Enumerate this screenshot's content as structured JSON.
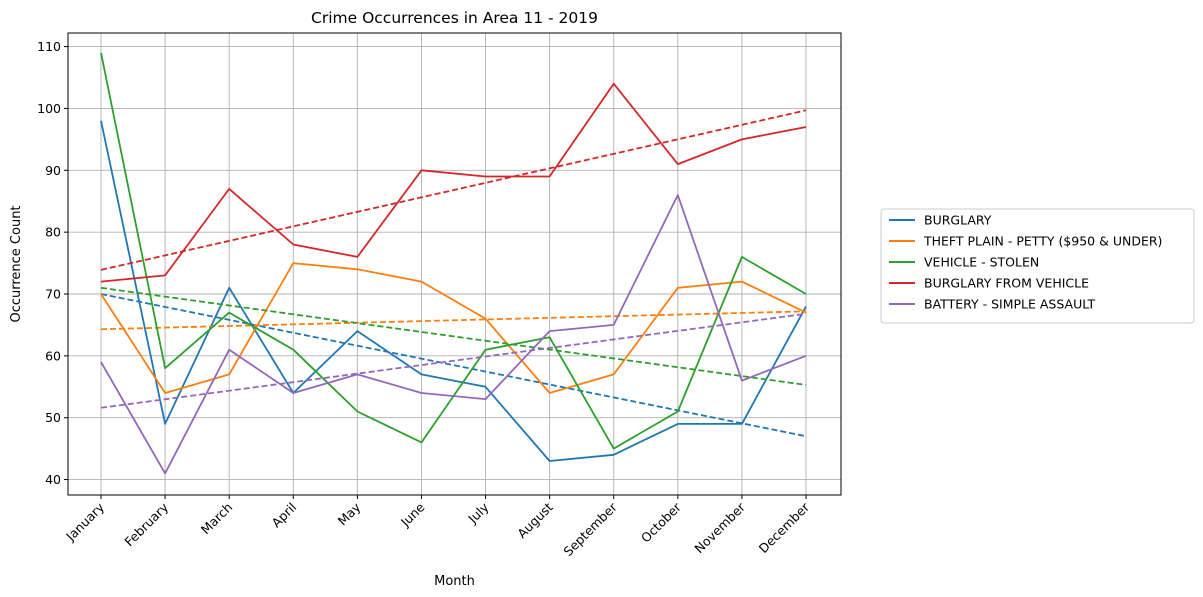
{
  "chart_data": {
    "type": "line",
    "title": "Crime Occurrences in Area 11 - 2019",
    "xlabel": "Month",
    "ylabel": "Occurrence Count",
    "categories": [
      "January",
      "February",
      "March",
      "April",
      "May",
      "June",
      "July",
      "August",
      "September",
      "October",
      "November",
      "December"
    ],
    "yticks": [
      40,
      50,
      60,
      70,
      80,
      90,
      100,
      110
    ],
    "ylim": [
      37.5,
      112.2
    ],
    "grid": true,
    "legend_position": "right",
    "series": [
      {
        "name": "BURGLARY",
        "color": "#1f77b4",
        "values": [
          98,
          49,
          71,
          54,
          64,
          57,
          55,
          43,
          44,
          49,
          49,
          68
        ],
        "trend": [
          70.0,
          47.0
        ]
      },
      {
        "name": "THEFT PLAIN - PETTY ($950 & UNDER)",
        "color": "#ff7f0e",
        "values": [
          70,
          54,
          57,
          75,
          74,
          72,
          66,
          54,
          57,
          71,
          72,
          67
        ],
        "trend": [
          64.3,
          67.2
        ]
      },
      {
        "name": "VEHICLE - STOLEN",
        "color": "#2ca02c",
        "values": [
          109,
          58,
          67,
          61,
          51,
          46,
          61,
          63,
          45,
          51,
          76,
          70
        ],
        "trend": [
          71.0,
          55.3
        ]
      },
      {
        "name": "BURGLARY FROM VEHICLE",
        "color": "#d62728",
        "values": [
          72,
          73,
          87,
          78,
          76,
          90,
          89,
          89,
          104,
          91,
          95,
          97
        ],
        "trend": [
          73.9,
          99.7
        ]
      },
      {
        "name": "BATTERY - SIMPLE ASSAULT",
        "color": "#9467bd",
        "values": [
          59,
          41,
          61,
          54,
          57,
          54,
          53,
          64,
          65,
          86,
          56,
          60
        ],
        "trend": [
          51.6,
          66.8
        ]
      }
    ]
  }
}
